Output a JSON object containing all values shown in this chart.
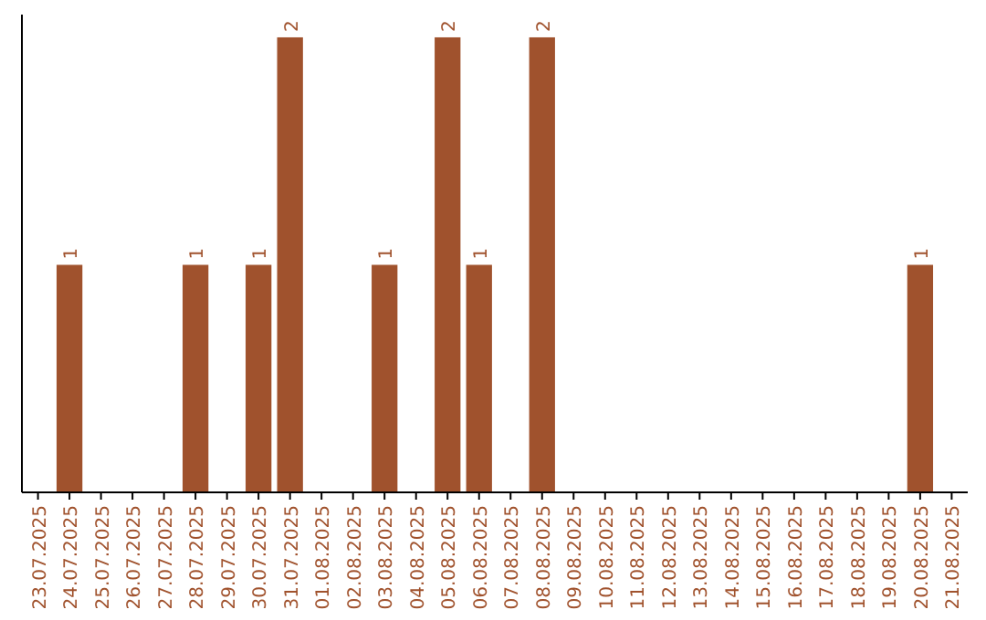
{
  "chart_data": {
    "type": "bar",
    "categories": [
      "23.07.2025",
      "24.07.2025",
      "25.07.2025",
      "26.07.2025",
      "27.07.2025",
      "28.07.2025",
      "29.07.2025",
      "30.07.2025",
      "31.07.2025",
      "01.08.2025",
      "02.08.2025",
      "03.08.2025",
      "04.08.2025",
      "05.08.2025",
      "06.08.2025",
      "07.08.2025",
      "08.08.2025",
      "09.08.2025",
      "10.08.2025",
      "11.08.2025",
      "12.08.2025",
      "13.08.2025",
      "14.08.2025",
      "15.08.2025",
      "16.08.2025",
      "17.08.2025",
      "18.08.2025",
      "19.08.2025",
      "20.08.2025",
      "21.08.2025"
    ],
    "values": [
      0,
      1,
      0,
      0,
      0,
      1,
      0,
      1,
      2,
      0,
      0,
      1,
      0,
      2,
      1,
      0,
      2,
      0,
      0,
      0,
      0,
      0,
      0,
      0,
      0,
      0,
      0,
      0,
      1,
      0
    ],
    "value_labels": [
      null,
      "1",
      null,
      null,
      null,
      "1",
      null,
      "1",
      "2",
      null,
      null,
      "1",
      null,
      "2",
      "1",
      null,
      "2",
      null,
      null,
      null,
      null,
      null,
      null,
      null,
      null,
      null,
      null,
      null,
      "1",
      null
    ],
    "color": "#a0522d"
  }
}
